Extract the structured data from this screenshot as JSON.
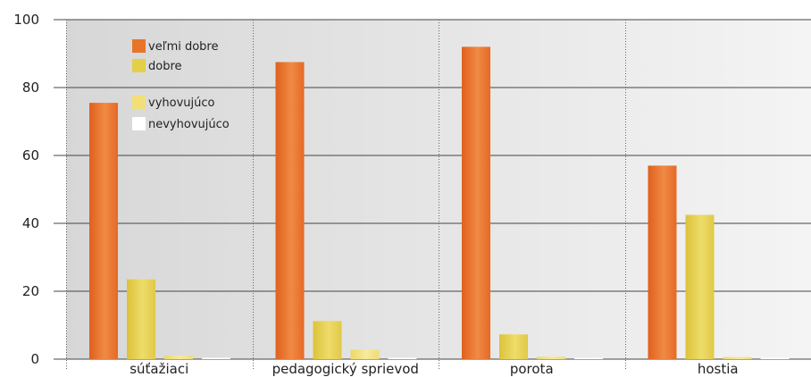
{
  "chart_data": {
    "type": "bar",
    "categories": [
      "súťažiaci",
      "pedagogický sprievod",
      "porota",
      "hostia"
    ],
    "series": [
      {
        "name": "veľmi dobre",
        "color": "#e8742a",
        "values": [
          75.5,
          87.5,
          92,
          57
        ]
      },
      {
        "name": "dobre",
        "color": "#e3cf48",
        "values": [
          23.5,
          11.2,
          7.3,
          42.5
        ]
      },
      {
        "name": "vyhovujúco",
        "color": "#f2df7a",
        "values": [
          1,
          2.8,
          0.7,
          0.6
        ]
      },
      {
        "name": "nevyhovujúco",
        "color": "#ffffff",
        "values": [
          0.3,
          0.4,
          0.3,
          0.3
        ]
      }
    ],
    "ylim": [
      0,
      100
    ],
    "yticks": [
      "0",
      "20",
      "40",
      "60",
      "80",
      "100"
    ],
    "grid": true,
    "legend_position": "top-left"
  }
}
